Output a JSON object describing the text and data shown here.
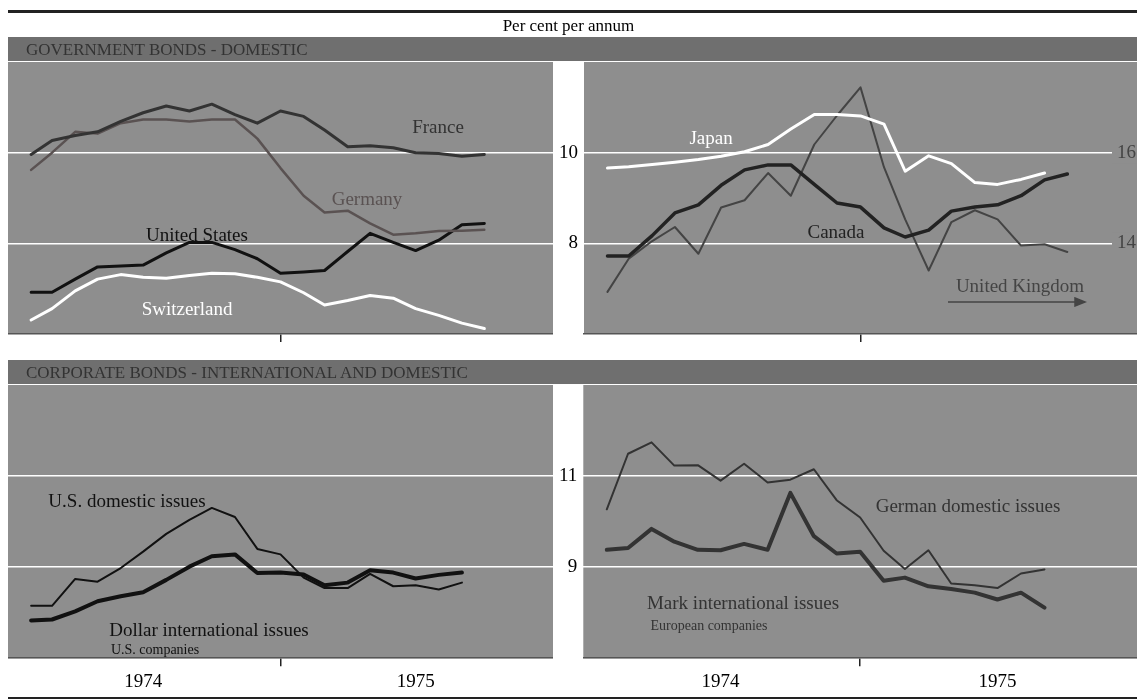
{
  "chart_data": [
    {
      "type": "line",
      "title": "GOVERNMENT BONDS - DOMESTIC",
      "subtitle": "Per cent per annum",
      "x": [
        "1974-02",
        "1974-03",
        "1974-04",
        "1974-05",
        "1974-06",
        "1974-07",
        "1974-08",
        "1974-09",
        "1974-10",
        "1974-11",
        "1974-12",
        "1975-01",
        "1975-02",
        "1975-03",
        "1975-04",
        "1975-05",
        "1975-06",
        "1975-07",
        "1975-08",
        "1975-09",
        "1975-10"
      ],
      "series": [
        {
          "name": "France",
          "color": "#333333",
          "values": [
            9.96,
            10.27,
            10.38,
            10.46,
            10.69,
            10.88,
            11.03,
            10.92,
            11.07,
            10.84,
            10.65,
            10.92,
            10.8,
            10.5,
            10.13,
            10.15,
            10.11,
            10.0,
            9.98,
            9.92,
            9.96
          ]
        },
        {
          "name": "Germany",
          "color": "#5a5252",
          "values": [
            9.62,
            10.0,
            10.46,
            10.42,
            10.65,
            10.73,
            10.73,
            10.69,
            10.73,
            10.73,
            10.31,
            9.66,
            9.05,
            8.68,
            8.72,
            8.44,
            8.19,
            8.22,
            8.27,
            8.28,
            8.3
          ]
        },
        {
          "name": "United States",
          "color": "#111111",
          "values": [
            6.92,
            6.92,
            7.21,
            7.48,
            7.5,
            7.52,
            7.79,
            8.02,
            8.02,
            7.86,
            7.66,
            7.34,
            7.37,
            7.4,
            7.82,
            8.22,
            8.02,
            7.84,
            8.07,
            8.41,
            8.44
          ]
        },
        {
          "name": "Switzerland",
          "color": "#ffffff",
          "values": [
            6.31,
            6.56,
            6.95,
            7.21,
            7.31,
            7.25,
            7.23,
            7.29,
            7.34,
            7.33,
            7.25,
            7.15,
            6.91,
            6.64,
            6.74,
            6.85,
            6.79,
            6.56,
            6.41,
            6.24,
            6.12
          ]
        }
      ],
      "xlim": [
        "1974-01",
        "1976-01"
      ],
      "ylim": [
        6,
        12
      ],
      "yticks": [
        8,
        10
      ],
      "grid": "y",
      "tick_labels": false,
      "xticks": [
        {
          "value": "1975-01",
          "label": null
        }
      ]
    },
    {
      "type": "line",
      "x": [
        "1974-02",
        "1974-03",
        "1974-04",
        "1974-05",
        "1974-06",
        "1974-07",
        "1974-08",
        "1974-09",
        "1974-10",
        "1974-11",
        "1974-12",
        "1975-01",
        "1975-02",
        "1975-03",
        "1975-04",
        "1975-05",
        "1975-06",
        "1975-07",
        "1975-08",
        "1975-09",
        "1975-10"
      ],
      "series": [
        {
          "name": "Japan",
          "color": "#ffffff",
          "values": [
            9.66,
            9.69,
            9.74,
            9.79,
            9.85,
            9.92,
            10.02,
            10.18,
            10.52,
            10.84,
            10.84,
            10.81,
            10.63,
            9.59,
            9.93,
            9.76,
            9.34,
            9.3,
            9.41,
            9.55,
            null
          ]
        },
        {
          "name": "Canada",
          "color": "#222222",
          "values": [
            7.72,
            7.72,
            8.17,
            8.67,
            8.85,
            9.28,
            9.62,
            9.73,
            9.73,
            9.3,
            8.89,
            8.8,
            8.34,
            8.14,
            8.29,
            8.71,
            8.8,
            8.85,
            9.05,
            9.4,
            9.53
          ]
        },
        {
          "name": "United Kingdom",
          "color": "#444444",
          "axis": "y2",
          "values": [
            12.93,
            13.66,
            14.05,
            14.36,
            13.77,
            14.79,
            14.95,
            15.55,
            15.05,
            16.18,
            16.82,
            17.44,
            15.68,
            14.53,
            13.4,
            14.47,
            14.73,
            14.53,
            13.95,
            13.98,
            13.81
          ]
        }
      ],
      "xlim": [
        "1974-01",
        "1976-01"
      ],
      "xticks": [
        {
          "value": "1975-01",
          "label": null
        }
      ],
      "ylim": [
        6,
        12
      ],
      "yticks": [
        8,
        10
      ],
      "y2lim": [
        12,
        18
      ],
      "y2ticks": [
        14,
        16
      ],
      "grid": "y",
      "tick_labels": "y"
    },
    {
      "type": "line",
      "title": "CORPORATE BONDS - INTERNATIONAL AND DOMESTIC",
      "annotations": [
        "U.S. companies"
      ],
      "x": [
        "1974-02",
        "1974-03",
        "1974-04",
        "1974-05",
        "1974-06",
        "1974-07",
        "1974-08",
        "1974-09",
        "1974-10",
        "1974-11",
        "1974-12",
        "1975-01",
        "1975-02",
        "1975-03",
        "1975-04",
        "1975-05",
        "1975-06",
        "1975-07",
        "1975-08",
        "1975-09"
      ],
      "series": [
        {
          "name": "U.S. domestic issues",
          "color": "#111111",
          "values": [
            8.15,
            8.15,
            8.74,
            8.68,
            8.98,
            9.34,
            9.73,
            10.04,
            10.3,
            10.1,
            9.4,
            9.28,
            8.77,
            8.54,
            8.54,
            8.85,
            8.58,
            8.6,
            8.51,
            8.66
          ]
        },
        {
          "name": "Dollar international issues",
          "color": "#111111",
          "values": [
            7.83,
            7.85,
            8.03,
            8.25,
            8.36,
            8.45,
            8.72,
            9.01,
            9.24,
            9.28,
            8.87,
            8.88,
            8.84,
            8.6,
            8.66,
            8.93,
            8.88,
            8.75,
            8.83,
            8.88
          ]
        }
      ],
      "xlim": [
        "1974-01",
        "1976-01"
      ],
      "xticks": [
        {
          "value": "1974-07",
          "label": "1974"
        },
        {
          "value": "1975-01",
          "label": null
        },
        {
          "value": "1975-07",
          "label": "1975"
        }
      ],
      "ylim": [
        7,
        13
      ],
      "yticks": [
        9,
        11
      ],
      "grid": "y",
      "tick_labels": "x"
    },
    {
      "type": "line",
      "annotations": [
        "European companies"
      ],
      "x": [
        "1974-02",
        "1974-03",
        "1974-04",
        "1974-05",
        "1974-06",
        "1974-07",
        "1974-08",
        "1974-09",
        "1974-10",
        "1974-11",
        "1974-12",
        "1975-01",
        "1975-02",
        "1975-03",
        "1975-04",
        "1975-05",
        "1975-06",
        "1975-07",
        "1975-08",
        "1975-09"
      ],
      "series": [
        {
          "name": "German domestic issues",
          "color": "#333333",
          "values": [
            10.27,
            11.49,
            11.74,
            11.23,
            11.24,
            10.9,
            11.27,
            10.86,
            10.92,
            11.15,
            10.47,
            10.09,
            9.36,
            8.96,
            9.37,
            8.64,
            8.6,
            8.54,
            8.86,
            8.95
          ]
        },
        {
          "name": "Mark international issues",
          "color": "#333333",
          "values": [
            9.38,
            9.42,
            9.84,
            9.56,
            9.38,
            9.37,
            9.51,
            9.38,
            10.63,
            9.68,
            9.3,
            9.34,
            8.7,
            8.77,
            8.58,
            8.52,
            8.44,
            8.29,
            8.44,
            8.11
          ]
        }
      ],
      "xlim": [
        "1974-01",
        "1976-01"
      ],
      "xticks": [
        {
          "value": "1974-07",
          "label": "1974"
        },
        {
          "value": "1975-01",
          "label": null
        },
        {
          "value": "1975-07",
          "label": "1975"
        }
      ],
      "ylim": [
        7,
        13
      ],
      "yticks": [
        9,
        11
      ],
      "grid": "y"
    }
  ]
}
